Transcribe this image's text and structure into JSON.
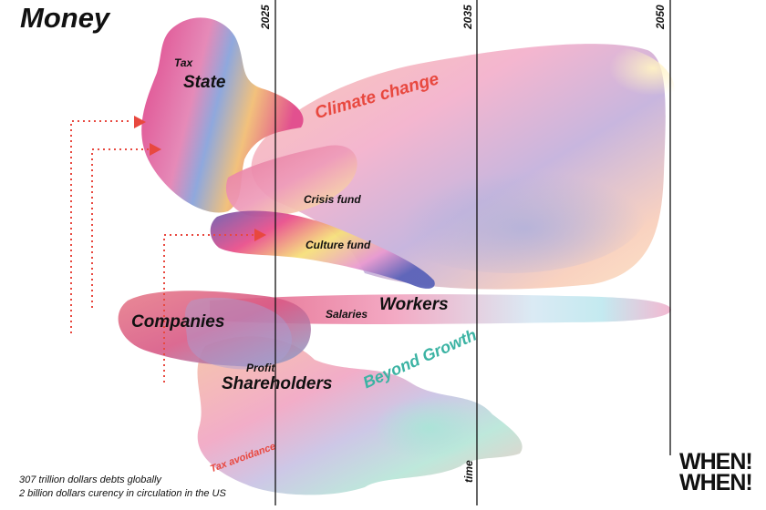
{
  "title": "Money",
  "years": [
    "2025",
    "2035",
    "2050"
  ],
  "axis_label": "time",
  "labels": {
    "tax": "Tax",
    "state": "State",
    "climate_change": "Climate change",
    "crisis_fund": "Crisis fund",
    "culture_fund": "Culture fund",
    "workers": "Workers",
    "salaries": "Salaries",
    "companies": "Companies",
    "beyond_growth": "Beyond Growth",
    "profit": "Profit",
    "shareholders": "Shareholders",
    "tax_avoidance": "Tax avoidance"
  },
  "footnotes": [
    "307 trillion dollars debts globally",
    "2 billion dollars curency in circulation in the US"
  ],
  "logo_lines": [
    "WHEN!",
    "WHEN!"
  ],
  "colors": {
    "accent_red": "#e8483f",
    "accent_teal": "#3bb3a3"
  }
}
